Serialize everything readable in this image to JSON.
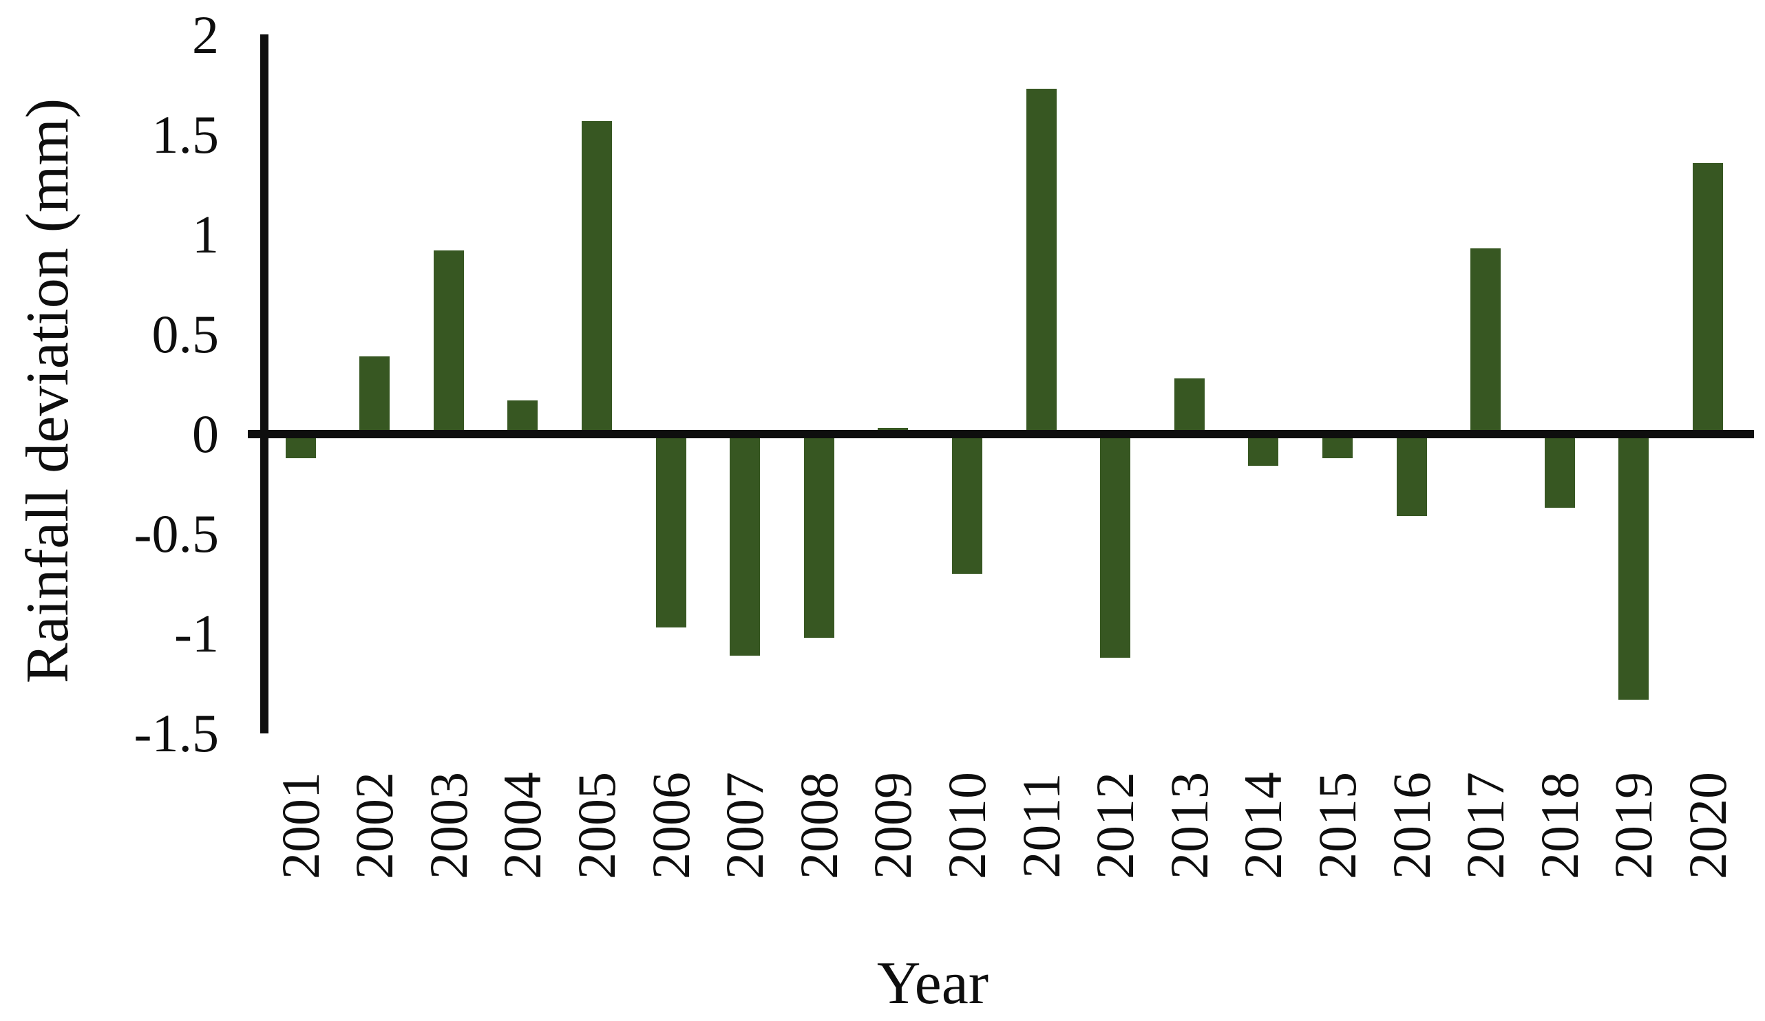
{
  "chart_data": {
    "type": "bar",
    "title": "",
    "xlabel": "Year",
    "ylabel": "Rainfall deviation (mm)",
    "categories": [
      "2001",
      "2002",
      "2003",
      "2004",
      "2005",
      "2006",
      "2007",
      "2008",
      "2009",
      "2010",
      "2011",
      "2012",
      "2013",
      "2014",
      "2015",
      "2016",
      "2017",
      "2018",
      "2019",
      "2020"
    ],
    "values": [
      -0.12,
      0.39,
      0.92,
      0.17,
      1.57,
      -0.97,
      -1.11,
      -1.02,
      0.03,
      -0.7,
      1.73,
      -1.12,
      0.28,
      -0.16,
      -0.12,
      -0.41,
      0.93,
      -0.37,
      -1.33,
      1.36
    ],
    "series_name": "Rainfall deviation",
    "y_ticks": [
      "2",
      "1.5",
      "1",
      "0.5",
      "0",
      "-0.5",
      "-1",
      "-1.5"
    ],
    "ylim": [
      -1.5,
      2
    ],
    "grid": "off",
    "legend": "none",
    "bar_color": "#375722",
    "axis_color": "#0e0e0e",
    "background_color": "#ffffff"
  }
}
